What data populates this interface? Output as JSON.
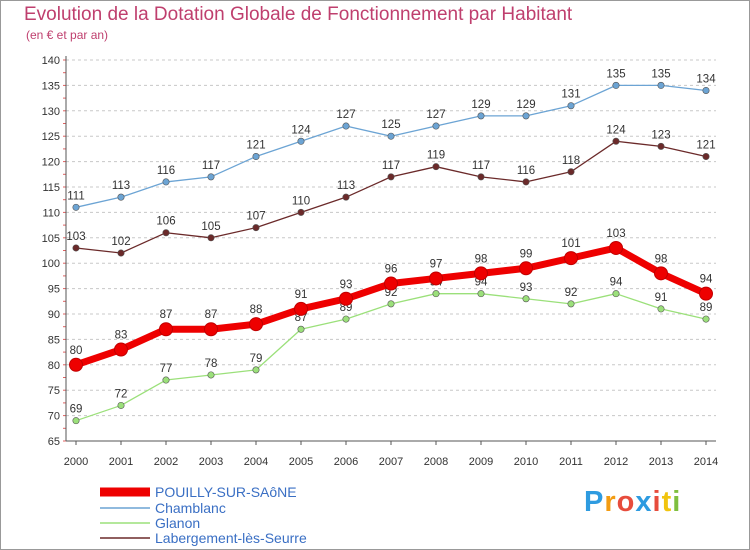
{
  "header": {
    "title": "Evolution de la Dotation Globale de Fonctionnement par Habitant",
    "subtitle": "(en € et par an)"
  },
  "logo": {
    "letters": [
      "P",
      "r",
      "o",
      "x",
      "i",
      "t",
      "i"
    ],
    "colors": [
      "#2e9be0",
      "#f39c12",
      "#e74c3c",
      "#2e9be0",
      "#e74c3c",
      "#f1c40f",
      "#7fbf3f"
    ]
  },
  "chart_data": {
    "type": "line",
    "title": "Evolution de la Dotation Globale de Fonctionnement par Habitant",
    "subtitle": "(en € et par an)",
    "xlabel": "",
    "ylabel": "",
    "x": [
      "2000",
      "2001",
      "2002",
      "2003",
      "2004",
      "2005",
      "2006",
      "2007",
      "2008",
      "2009",
      "2010",
      "2011",
      "2012",
      "2013",
      "2014"
    ],
    "ylim": [
      65,
      140
    ],
    "yticks": [
      65,
      70,
      75,
      80,
      85,
      90,
      95,
      100,
      105,
      110,
      115,
      120,
      125,
      130,
      135,
      140
    ],
    "grid": "horizontal dashed",
    "legend_position": "bottom-left",
    "series": [
      {
        "name": "Chamblanc",
        "color": "#6ca4d4",
        "values": [
          111,
          113,
          116,
          117,
          121,
          124,
          127,
          125,
          127,
          129,
          129,
          131,
          135,
          135,
          134
        ]
      },
      {
        "name": "Labergement-lès-Seurre",
        "color": "#6b2a2a",
        "values": [
          103,
          102,
          106,
          105,
          107,
          110,
          113,
          117,
          119,
          117,
          116,
          118,
          124,
          123,
          121
        ]
      },
      {
        "name": "Glanon",
        "color": "#9be07a",
        "values": [
          69,
          72,
          77,
          78,
          79,
          87,
          89,
          92,
          94,
          94,
          93,
          92,
          94,
          91,
          89
        ]
      },
      {
        "name": "POUILLY-SUR-SAôNE",
        "color": "#ee0000",
        "values": [
          80,
          83,
          87,
          87,
          88,
          91,
          93,
          96,
          97,
          98,
          99,
          101,
          103,
          98,
          94
        ]
      }
    ],
    "legend_order": [
      "POUILLY-SUR-SAôNE",
      "Chamblanc",
      "Glanon",
      "Labergement-lès-Seurre"
    ]
  }
}
